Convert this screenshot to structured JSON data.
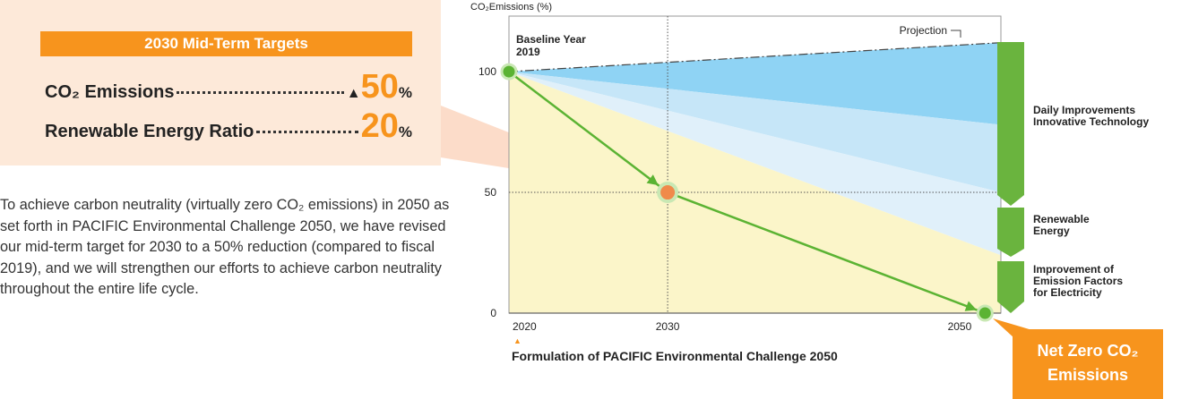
{
  "targets": {
    "title": "2030 Mid-Term Targets",
    "items": [
      {
        "label": "CO₂ Emissions",
        "arrow": "▲",
        "value": 50,
        "unit": "%"
      },
      {
        "label": "Renewable Energy Ratio",
        "value": 20,
        "unit": "%"
      }
    ]
  },
  "description": "To achieve carbon neutrality (virtually zero CO₂ emissions) in 2050 as set forth in PACIFIC Environmental Challenge 2050, we have revised our mid-term target for 2030 to a 50% reduction (compared to fiscal 2019), and we will strengthen our efforts to achieve carbon neutrality throughout the entire life cycle.",
  "chart_data": {
    "type": "line",
    "y_label": "CO₂Emissions (%)",
    "x": [
      2020,
      2030,
      2050
    ],
    "series": [
      {
        "color": "#5bb333",
        "values": [
          100,
          50,
          0
        ]
      }
    ],
    "point_colors": [
      "#5bb333",
      "#f08a4b",
      "#5bb333"
    ],
    "xlim": [
      2020,
      2051
    ],
    "ylim": [
      0,
      123
    ],
    "xticks": [
      2020,
      2030,
      2050
    ],
    "yticks": [
      0,
      50,
      100
    ],
    "projection": {
      "label": "Projection",
      "x": [
        2020,
        2051
      ],
      "values": [
        100,
        112
      ]
    },
    "bands": [
      {
        "color": "#8fd3f4",
        "value": 78
      },
      {
        "color": "#c6e6f8",
        "value": 50
      },
      {
        "color": "#e0f0fa",
        "value": 24
      }
    ],
    "area_color": "#fbf5c9",
    "baseline": [
      "Baseline Year",
      "2019"
    ],
    "marker": "▲",
    "footnote": "Formulation of PACIFIC Environmental Challenge 2050",
    "steps": [
      [
        "Daily Improvements",
        "Innovative Technology"
      ],
      [
        "Renewable",
        "Energy"
      ],
      [
        "Improvement of",
        "Emission Factors",
        "for Electricity"
      ]
    ],
    "goal": [
      "Net Zero CO₂",
      "Emissions"
    ]
  }
}
